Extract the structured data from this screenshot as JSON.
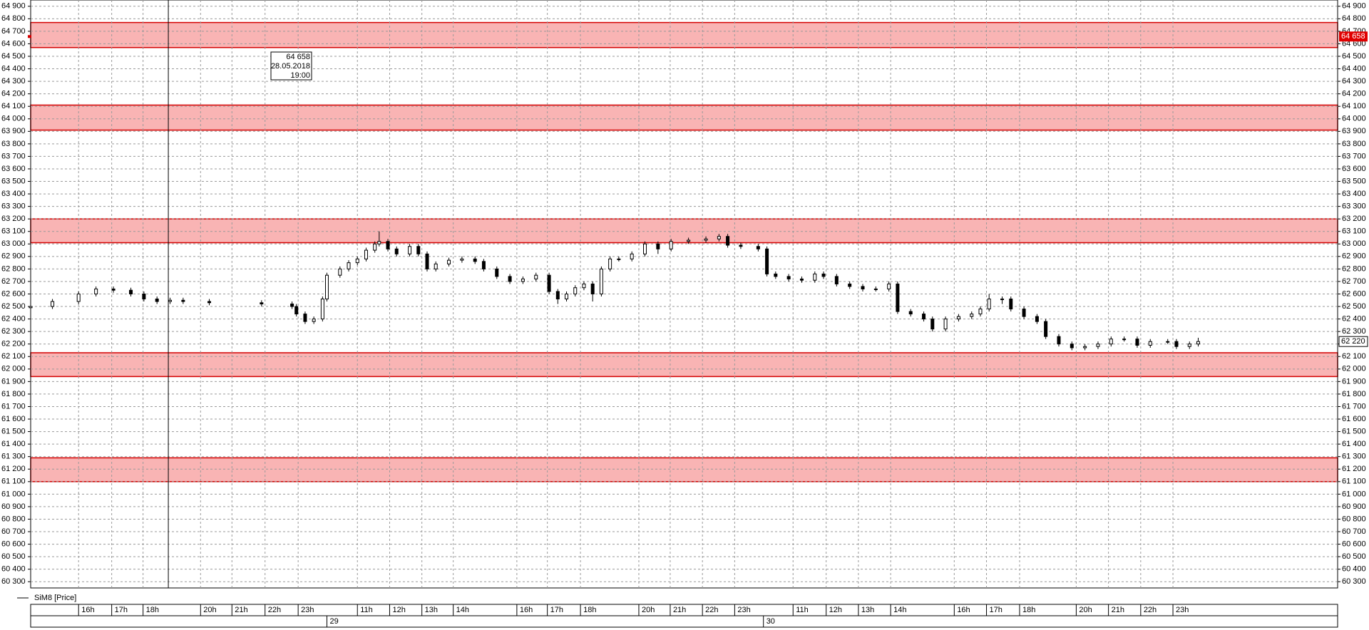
{
  "chart_data": {
    "type": "candlestick",
    "series": {
      "name": "SiM8 [Price]",
      "color": "#000000",
      "up_color": "#ffffff",
      "x": [
        0,
        5,
        11,
        15,
        19,
        23,
        26,
        29,
        32,
        35,
        41,
        53,
        60,
        61,
        63,
        65,
        67,
        68,
        71,
        73,
        75,
        77,
        79,
        80,
        82,
        84,
        87,
        89,
        91,
        93,
        96,
        99,
        102,
        104,
        107,
        110,
        113,
        116,
        119,
        121,
        123,
        125,
        127,
        129,
        131,
        133,
        135,
        138,
        141,
        144,
        147,
        151,
        155,
        158,
        160,
        163,
        167,
        169,
        171,
        174,
        177,
        180,
        182,
        185,
        188,
        191,
        194,
        197,
        199,
        202,
        205,
        207,
        210,
        213,
        216,
        218,
        220,
        223,
        225,
        228,
        231,
        233,
        236,
        239,
        242,
        245,
        248,
        251,
        254,
        257,
        261,
        263,
        266,
        268
      ],
      "open": [
        62490,
        62500,
        62540,
        62600,
        62640,
        62630,
        62600,
        62560,
        62540,
        62550,
        62540,
        62530,
        62520,
        62500,
        62440,
        62380,
        62400,
        62560,
        62750,
        62800,
        62850,
        62880,
        62950,
        63000,
        63020,
        62960,
        62920,
        62980,
        62920,
        62800,
        62840,
        62870,
        62880,
        62860,
        62800,
        62740,
        62700,
        62720,
        62750,
        62620,
        62560,
        62600,
        62650,
        62680,
        62600,
        62800,
        62880,
        62880,
        62920,
        63000,
        62960,
        63020,
        63030,
        63040,
        63060,
        62990,
        62980,
        62960,
        62760,
        62740,
        62720,
        62710,
        62760,
        62740,
        62680,
        62660,
        62640,
        62640,
        62680,
        62460,
        62440,
        62400,
        62320,
        62400,
        62420,
        62440,
        62480,
        62560,
        62560,
        62480,
        62420,
        62380,
        62260,
        62200,
        62170,
        62180,
        62200,
        62240,
        62240,
        62190,
        62220,
        62220,
        62180,
        62200
      ],
      "high": [
        62520,
        62560,
        62620,
        62660,
        62660,
        62650,
        62620,
        62580,
        62570,
        62570,
        62560,
        62550,
        62540,
        62520,
        62460,
        62420,
        62580,
        62770,
        62820,
        62870,
        62900,
        62970,
        63020,
        63100,
        63040,
        62980,
        63000,
        63000,
        62940,
        62860,
        62890,
        62900,
        62900,
        62880,
        62820,
        62760,
        62740,
        62770,
        62770,
        62640,
        62620,
        62670,
        62700,
        62700,
        62820,
        62900,
        62900,
        62940,
        63020,
        63020,
        63040,
        63050,
        63060,
        63080,
        63080,
        63010,
        63000,
        62980,
        62780,
        62760,
        62740,
        62780,
        62780,
        62760,
        62700,
        62680,
        62660,
        62700,
        62700,
        62480,
        62460,
        62420,
        62420,
        62440,
        62460,
        62500,
        62600,
        62580,
        62580,
        62500,
        62440,
        62400,
        62280,
        62220,
        62200,
        62220,
        62260,
        62260,
        62260,
        62240,
        62240,
        62240,
        62220,
        62250
      ],
      "low": [
        62470,
        62480,
        62520,
        62580,
        62610,
        62580,
        62540,
        62520,
        62520,
        62520,
        62510,
        62500,
        62480,
        62420,
        62360,
        62360,
        62380,
        62540,
        62730,
        62780,
        62830,
        62860,
        62930,
        62980,
        62940,
        62900,
        62900,
        62900,
        62780,
        62780,
        62820,
        62850,
        62840,
        62780,
        62720,
        62680,
        62680,
        62700,
        62600,
        62520,
        62540,
        62580,
        62630,
        62540,
        62580,
        62780,
        62860,
        62860,
        62900,
        62920,
        62940,
        63000,
        63010,
        63020,
        62970,
        62960,
        62940,
        62740,
        62720,
        62700,
        62690,
        62690,
        62720,
        62660,
        62640,
        62620,
        62620,
        62620,
        62440,
        62420,
        62380,
        62300,
        62300,
        62380,
        62400,
        62420,
        62460,
        62520,
        62460,
        62400,
        62360,
        62240,
        62180,
        62150,
        62150,
        62160,
        62180,
        62220,
        62170,
        62170,
        62200,
        62160,
        62160,
        62180
      ],
      "close": [
        62500,
        62540,
        62600,
        62640,
        62630,
        62600,
        62560,
        62540,
        62550,
        62540,
        62530,
        62520,
        62500,
        62440,
        62380,
        62400,
        62560,
        62750,
        62800,
        62850,
        62880,
        62950,
        63000,
        63020,
        62960,
        62920,
        62980,
        62920,
        62800,
        62840,
        62870,
        62880,
        62860,
        62800,
        62740,
        62700,
        62720,
        62750,
        62620,
        62560,
        62600,
        62650,
        62680,
        62600,
        62800,
        62880,
        62880,
        62920,
        63000,
        62960,
        63020,
        63030,
        63040,
        63060,
        62990,
        62980,
        62960,
        62760,
        62740,
        62720,
        62710,
        62760,
        62740,
        62680,
        62660,
        62640,
        62640,
        62680,
        62460,
        62440,
        62400,
        62320,
        62400,
        62420,
        62440,
        62480,
        62560,
        62560,
        62480,
        62420,
        62380,
        62260,
        62200,
        62170,
        62180,
        62200,
        62240,
        62240,
        62190,
        62220,
        62220,
        62180,
        62200,
        62220
      ]
    },
    "xlim": [
      0,
      300
    ],
    "ylim": [
      60250,
      64950
    ],
    "grid": true,
    "yticks": [
      {
        "value": 64900,
        "label": "64 900"
      },
      {
        "value": 64800,
        "label": "64 800"
      },
      {
        "value": 64700,
        "label": "64 700"
      },
      {
        "value": 64600,
        "label": "64 600"
      },
      {
        "value": 64500,
        "label": "64 500"
      },
      {
        "value": 64400,
        "label": "64 400"
      },
      {
        "value": 64300,
        "label": "64 300"
      },
      {
        "value": 64200,
        "label": "64 200"
      },
      {
        "value": 64100,
        "label": "64 100"
      },
      {
        "value": 64000,
        "label": "64 000"
      },
      {
        "value": 63900,
        "label": "63 900"
      },
      {
        "value": 63800,
        "label": "63 800"
      },
      {
        "value": 63700,
        "label": "63 700"
      },
      {
        "value": 63600,
        "label": "63 600"
      },
      {
        "value": 63500,
        "label": "63 500"
      },
      {
        "value": 63400,
        "label": "63 400"
      },
      {
        "value": 63300,
        "label": "63 300"
      },
      {
        "value": 63200,
        "label": "63 200"
      },
      {
        "value": 63100,
        "label": "63 100"
      },
      {
        "value": 63000,
        "label": "63 000"
      },
      {
        "value": 62900,
        "label": "62 900"
      },
      {
        "value": 62800,
        "label": "62 800"
      },
      {
        "value": 62700,
        "label": "62 700"
      },
      {
        "value": 62600,
        "label": "62 600"
      },
      {
        "value": 62500,
        "label": "62 500"
      },
      {
        "value": 62400,
        "label": "62 400"
      },
      {
        "value": 62300,
        "label": "62 300"
      },
      {
        "value": 62200,
        "label": "62 200"
      },
      {
        "value": 62100,
        "label": "62 100"
      },
      {
        "value": 62000,
        "label": "62 000"
      },
      {
        "value": 61900,
        "label": "61 900"
      },
      {
        "value": 61800,
        "label": "61 800"
      },
      {
        "value": 61700,
        "label": "61 700"
      },
      {
        "value": 61600,
        "label": "61 600"
      },
      {
        "value": 61500,
        "label": "61 500"
      },
      {
        "value": 61400,
        "label": "61 400"
      },
      {
        "value": 61300,
        "label": "61 300"
      },
      {
        "value": 61200,
        "label": "61 200"
      },
      {
        "value": 61100,
        "label": "61 100"
      },
      {
        "value": 61000,
        "label": "61 000"
      },
      {
        "value": 60900,
        "label": "60 900"
      },
      {
        "value": 60800,
        "label": "60 800"
      },
      {
        "value": 60700,
        "label": "60 700"
      },
      {
        "value": 60600,
        "label": "60 600"
      },
      {
        "value": 60500,
        "label": "60 500"
      },
      {
        "value": 60400,
        "label": "60 400"
      },
      {
        "value": 60300,
        "label": "60 300"
      }
    ],
    "xticks": [
      {
        "value": 11,
        "label": "16h"
      },
      {
        "value": 18.6,
        "label": "17h"
      },
      {
        "value": 25.8,
        "label": "18h"
      },
      {
        "value": 39,
        "label": "20h"
      },
      {
        "value": 46.2,
        "label": "21h"
      },
      {
        "value": 53.8,
        "label": "22h"
      },
      {
        "value": 61.4,
        "label": "23h"
      },
      {
        "value": 75,
        "label": "11h"
      },
      {
        "value": 82.4,
        "label": "12h"
      },
      {
        "value": 89.8,
        "label": "13h"
      },
      {
        "value": 97,
        "label": "14h"
      },
      {
        "value": 111.6,
        "label": "16h"
      },
      {
        "value": 118.6,
        "label": "17h"
      },
      {
        "value": 126.2,
        "label": "18h"
      },
      {
        "value": 139.6,
        "label": "20h"
      },
      {
        "value": 146.8,
        "label": "21h"
      },
      {
        "value": 154.2,
        "label": "22h"
      },
      {
        "value": 161.6,
        "label": "23h"
      },
      {
        "value": 175,
        "label": "11h"
      },
      {
        "value": 182.6,
        "label": "12h"
      },
      {
        "value": 190,
        "label": "13h"
      },
      {
        "value": 197.4,
        "label": "14h"
      },
      {
        "value": 212,
        "label": "16h"
      },
      {
        "value": 219.4,
        "label": "17h"
      },
      {
        "value": 227,
        "label": "18h"
      },
      {
        "value": 240,
        "label": "20h"
      },
      {
        "value": 247.4,
        "label": "21h"
      },
      {
        "value": 254.8,
        "label": "22h"
      },
      {
        "value": 262.2,
        "label": "23h"
      }
    ],
    "day_ticks": [
      {
        "value": 68,
        "label": "29"
      },
      {
        "value": 168.2,
        "label": "30"
      }
    ],
    "zones": [
      [
        64570,
        64770
      ],
      [
        63910,
        64110
      ],
      [
        63010,
        63200
      ],
      [
        61940,
        62130
      ],
      [
        61100,
        61290
      ]
    ],
    "zone_color": "#f9b4b4",
    "zone_edge": "#d40000",
    "cursor": {
      "x": 31.6,
      "price": {
        "value": 64658,
        "label": "64 658"
      },
      "date": "28.05.2018",
      "time": "19:00"
    },
    "last_price": {
      "value": 62220,
      "label": "62 220"
    }
  }
}
